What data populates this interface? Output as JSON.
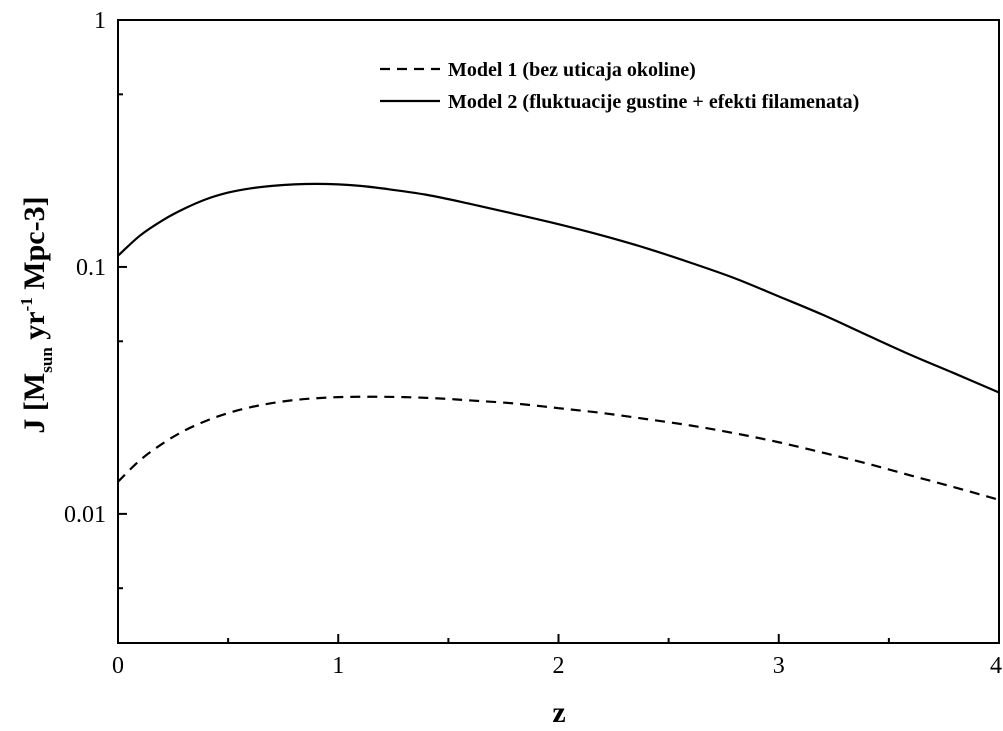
{
  "chart_data": {
    "type": "line",
    "xlabel": "z",
    "ylabel": {
      "prefix": "J [M",
      "sub": "sun",
      "mid": " yr",
      "sup": "-1",
      "suffix": " Mpc-3]"
    },
    "xlim": [
      0,
      4
    ],
    "ylim": [
      0.003,
      1
    ],
    "yscale": "log",
    "x_ticks": [
      0,
      1,
      2,
      3,
      4
    ],
    "x_tick_labels": [
      "0",
      "1",
      "2",
      "3",
      "4"
    ],
    "x_minor_ticks": [
      0.5,
      1.5,
      2.5,
      3.5
    ],
    "y_ticks": [
      0.01,
      0.1,
      1
    ],
    "y_tick_labels": [
      "0.01",
      "0.1",
      "1"
    ],
    "y_minor_ticks": [
      0.005,
      0.05,
      0.5
    ],
    "legend_position": "top-right",
    "series": [
      {
        "name": "Model 1 (bez uticaja okoline)",
        "style": "dashed",
        "x": [
          0,
          0.1,
          0.2,
          0.3,
          0.4,
          0.5,
          0.6,
          0.7,
          0.8,
          0.9,
          1.0,
          1.1,
          1.2,
          1.3,
          1.4,
          1.5,
          1.6,
          1.8,
          2.0,
          2.2,
          2.4,
          2.6,
          2.8,
          3.0,
          3.2,
          3.4,
          3.6,
          3.8,
          4.0
        ],
        "y": [
          0.0135,
          0.0165,
          0.0192,
          0.0217,
          0.0238,
          0.0256,
          0.027,
          0.0281,
          0.0289,
          0.0294,
          0.0297,
          0.0298,
          0.0298,
          0.0297,
          0.0295,
          0.0292,
          0.0288,
          0.028,
          0.0268,
          0.0256,
          0.0242,
          0.0228,
          0.0212,
          0.0195,
          0.0177,
          0.016,
          0.0143,
          0.0128,
          0.0114
        ]
      },
      {
        "name": "Model 2 (fluktuacije gustine + efekti filamenata)",
        "style": "solid",
        "x": [
          0,
          0.1,
          0.2,
          0.3,
          0.4,
          0.5,
          0.6,
          0.7,
          0.8,
          0.9,
          1.0,
          1.1,
          1.2,
          1.4,
          1.6,
          1.8,
          2.0,
          2.2,
          2.4,
          2.6,
          2.8,
          3.0,
          3.2,
          3.4,
          3.6,
          3.8,
          4.0
        ],
        "y": [
          0.111,
          0.134,
          0.154,
          0.172,
          0.188,
          0.2,
          0.208,
          0.213,
          0.216,
          0.217,
          0.216,
          0.213,
          0.208,
          0.196,
          0.18,
          0.164,
          0.149,
          0.134,
          0.119,
          0.104,
          0.09,
          0.076,
          0.064,
          0.053,
          0.044,
          0.037,
          0.031
        ]
      }
    ]
  }
}
